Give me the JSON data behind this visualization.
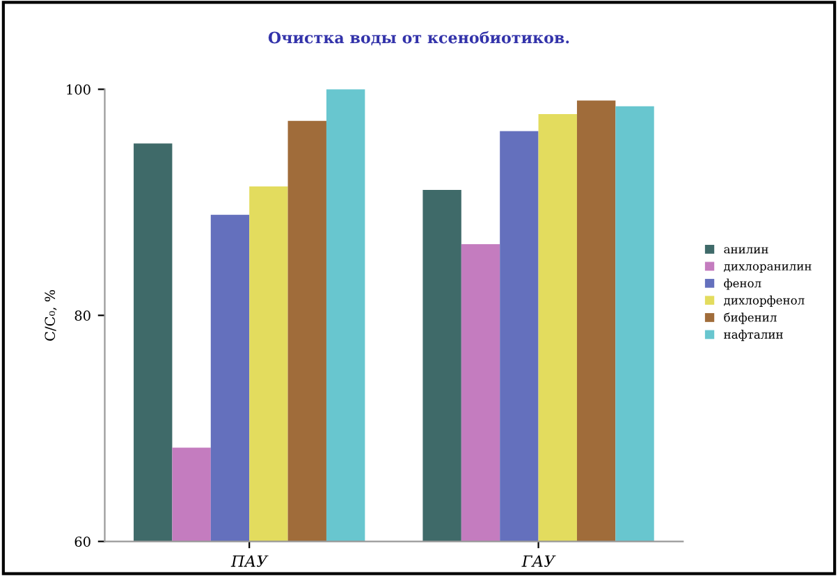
{
  "chart_data": {
    "type": "bar",
    "title": "Очистка воды от ксенобиотиков.",
    "ylabel": "С/С₀, %",
    "categories": [
      "ПАУ",
      "ГАУ"
    ],
    "series": [
      {
        "name": "анилин",
        "color": "#3f6a69",
        "values": [
          95.2,
          91.1
        ]
      },
      {
        "name": "дихлоранилин",
        "color": "#c47cbf",
        "values": [
          68.3,
          86.3
        ]
      },
      {
        "name": "фенол",
        "color": "#6470bd",
        "values": [
          88.9,
          96.3
        ]
      },
      {
        "name": "дихлорфенол",
        "color": "#e3dc5e",
        "values": [
          91.4,
          97.8
        ]
      },
      {
        "name": "бифенил",
        "color": "#a06c3a",
        "values": [
          97.2,
          99.0
        ]
      },
      {
        "name": "нафталин",
        "color": "#68c6cf",
        "values": [
          100,
          98.5
        ]
      }
    ],
    "ylim": [
      60,
      100
    ],
    "yticks": [
      60,
      80,
      100
    ],
    "grid": false,
    "legend": "right"
  }
}
